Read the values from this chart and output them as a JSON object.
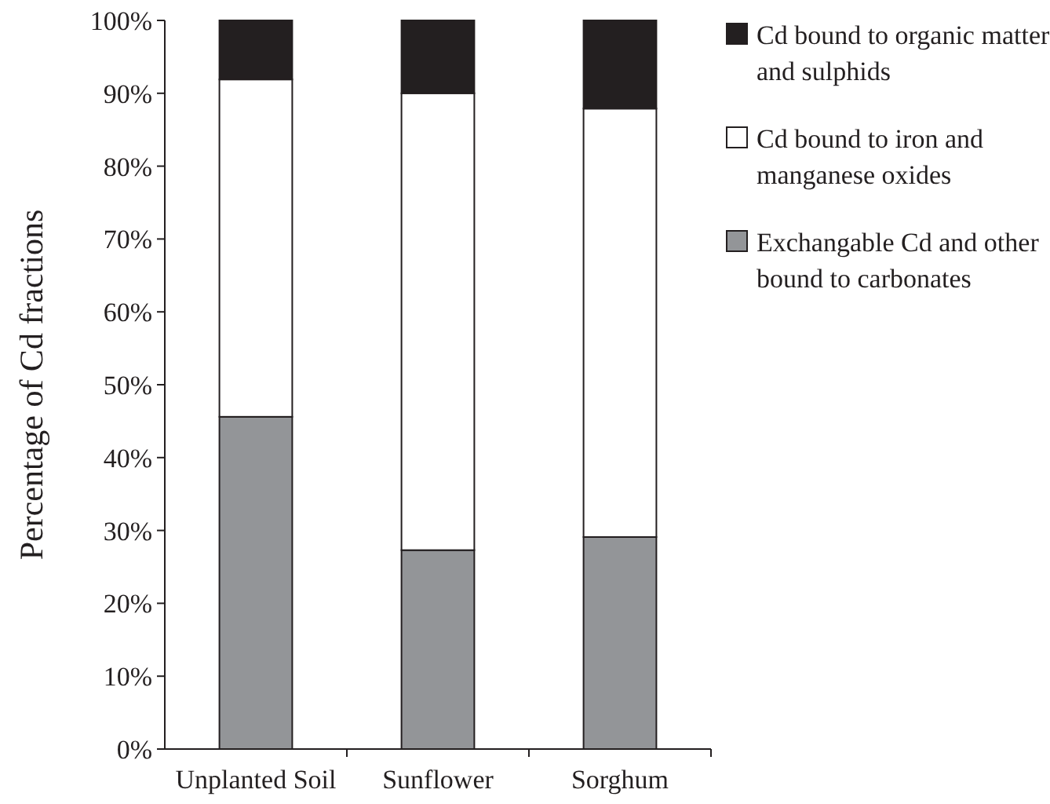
{
  "chart_data": {
    "type": "bar",
    "stacked": true,
    "ylabel": "Percentage of Cd fractions",
    "categories": [
      "Unplanted Soil",
      "Sunflower",
      "Sorghum"
    ],
    "series": [
      {
        "name": "Exchangable Cd and other bound to carbonates",
        "color": "#939598",
        "values": [
          45.6,
          27.3,
          29.1
        ]
      },
      {
        "name": "Cd bound to iron and manganese oxides",
        "color": "#ffffff",
        "values": [
          46.3,
          62.7,
          58.8
        ]
      },
      {
        "name": "Cd bound to organic matter and sulphids",
        "color": "#231f20",
        "values": [
          8.1,
          10,
          12.1
        ]
      }
    ],
    "ylim": [
      0,
      100
    ],
    "yticks": [
      {
        "value": 0,
        "label": "0%"
      },
      {
        "value": 10,
        "label": "10%"
      },
      {
        "value": 20,
        "label": "20%"
      },
      {
        "value": 30,
        "label": "30%"
      },
      {
        "value": 40,
        "label": "40%"
      },
      {
        "value": 50,
        "label": "50%"
      },
      {
        "value": 60,
        "label": "60%"
      },
      {
        "value": 70,
        "label": "70%"
      },
      {
        "value": 80,
        "label": "80%"
      },
      {
        "value": 90,
        "label": "90%"
      },
      {
        "value": 100,
        "label": "100%"
      }
    ],
    "legend": "right"
  }
}
